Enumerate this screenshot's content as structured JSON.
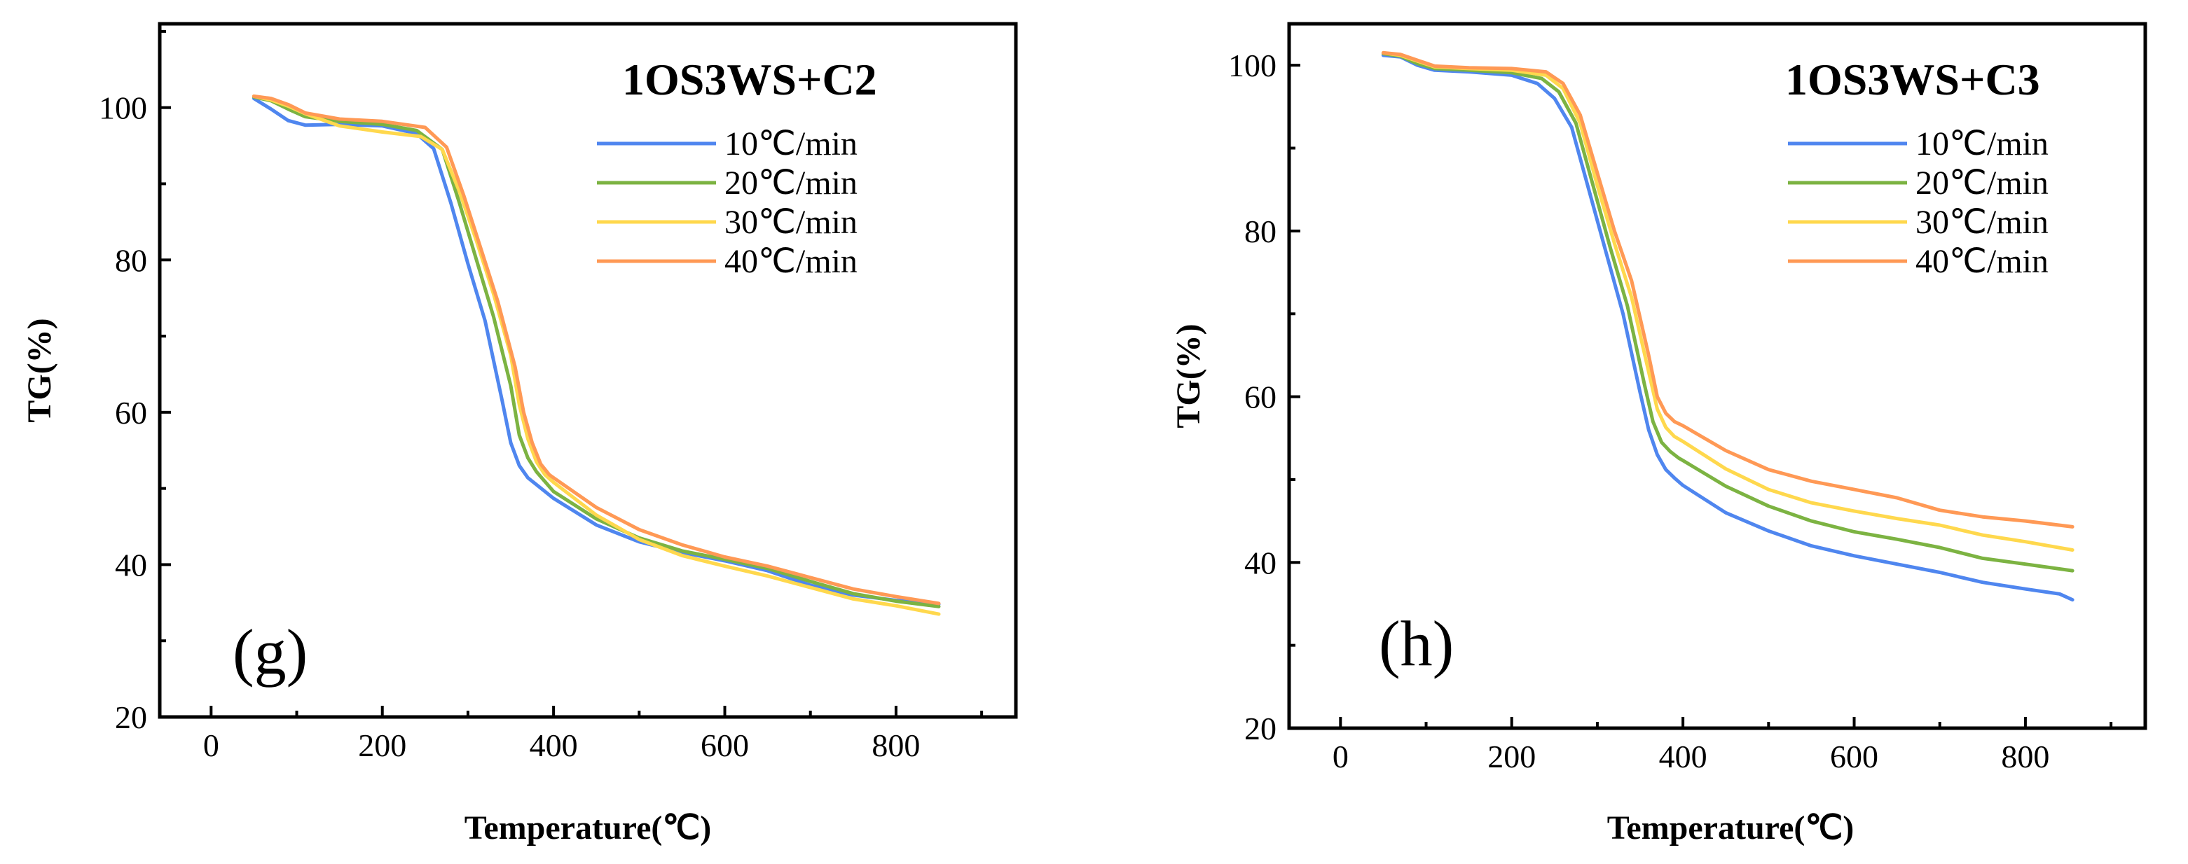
{
  "chart_data": [
    {
      "id": "g",
      "type": "line",
      "title": "1OS3WS+C2",
      "panel_label": "(g)",
      "xlabel": "Temperature(℃)",
      "ylabel": "TG(%)",
      "xlim": [
        -60,
        940
      ],
      "ylim": [
        20,
        111
      ],
      "xticks": [
        0,
        200,
        400,
        600,
        800
      ],
      "yticks": [
        20,
        40,
        60,
        80,
        100
      ],
      "legend_position": "top-right",
      "series": [
        {
          "name": "10℃/min",
          "color": "#4f86ef",
          "x": [
            50,
            70,
            90,
            110,
            150,
            200,
            240,
            260,
            280,
            300,
            320,
            340,
            350,
            360,
            370,
            380,
            400,
            450,
            500,
            550,
            600,
            650,
            700,
            750,
            800,
            850
          ],
          "y": [
            101.2,
            99.8,
            98.3,
            97.7,
            97.8,
            97.6,
            96.6,
            94.6,
            87.5,
            79.5,
            72,
            61.5,
            56,
            53,
            51.4,
            50.5,
            48.7,
            45.2,
            43,
            41.6,
            40.5,
            39.2,
            37.3,
            36,
            35.3,
            34.8
          ]
        },
        {
          "name": "20℃/min",
          "color": "#7cb342",
          "x": [
            50,
            70,
            90,
            110,
            150,
            200,
            240,
            270,
            290,
            310,
            330,
            350,
            360,
            370,
            380,
            400,
            450,
            500,
            550,
            600,
            650,
            700,
            750,
            800,
            850
          ],
          "y": [
            101.4,
            100.9,
            99.8,
            98.8,
            98.2,
            97.8,
            97,
            94.5,
            87.5,
            80,
            72.5,
            63.5,
            57,
            54,
            52.2,
            49.6,
            46,
            43.5,
            41.8,
            40.7,
            39.5,
            37.8,
            36.2,
            35.2,
            34.5
          ]
        },
        {
          "name": "30℃/min",
          "color": "#ffd84d",
          "x": [
            50,
            70,
            90,
            110,
            150,
            200,
            245,
            270,
            290,
            310,
            330,
            350,
            360,
            370,
            380,
            390,
            400,
            450,
            500,
            550,
            600,
            650,
            700,
            750,
            800,
            850
          ],
          "y": [
            101.5,
            101,
            100.2,
            99.2,
            97.6,
            96.8,
            96.2,
            94.5,
            89,
            82.5,
            75.5,
            67.5,
            61,
            56.5,
            53.5,
            51.8,
            50.8,
            46.5,
            43.3,
            41.2,
            39.8,
            38.5,
            37,
            35.5,
            34.6,
            33.5
          ]
        },
        {
          "name": "40℃/min",
          "color": "#ff9955",
          "x": [
            50,
            70,
            90,
            110,
            150,
            200,
            250,
            275,
            295,
            315,
            335,
            355,
            365,
            375,
            385,
            395,
            400,
            450,
            500,
            550,
            600,
            650,
            700,
            750,
            800,
            850
          ],
          "y": [
            101.5,
            101.2,
            100.4,
            99.3,
            98.5,
            98.2,
            97.4,
            94.8,
            88.5,
            81.5,
            74.5,
            66,
            60,
            56,
            53.2,
            51.8,
            51.4,
            47.5,
            44.6,
            42.6,
            41,
            39.8,
            38.3,
            36.8,
            35.8,
            34.9
          ]
        }
      ]
    },
    {
      "id": "h",
      "type": "line",
      "title": "1OS3WS+C3",
      "panel_label": "(h)",
      "xlabel": "Temperature(℃)",
      "ylabel": "TG(%)",
      "xlim": [
        -60,
        940
      ],
      "ylim": [
        20,
        105
      ],
      "xticks": [
        0,
        200,
        400,
        600,
        800
      ],
      "yticks": [
        20,
        40,
        60,
        80,
        100
      ],
      "legend_position": "top-right",
      "series": [
        {
          "name": "10℃/min",
          "color": "#4f86ef",
          "x": [
            50,
            70,
            90,
            110,
            150,
            200,
            230,
            250,
            270,
            290,
            310,
            330,
            350,
            360,
            370,
            380,
            390,
            400,
            450,
            500,
            550,
            600,
            650,
            700,
            750,
            800,
            840,
            855
          ],
          "y": [
            101.2,
            101,
            100,
            99.4,
            99.2,
            98.8,
            97.8,
            96,
            92.5,
            85,
            77.5,
            70,
            60.5,
            56,
            53,
            51.2,
            50.2,
            49.3,
            46,
            43.8,
            42,
            40.8,
            39.8,
            38.8,
            37.6,
            36.8,
            36.2,
            35.5
          ]
        },
        {
          "name": "20℃/min",
          "color": "#7cb342",
          "x": [
            50,
            70,
            90,
            110,
            150,
            200,
            235,
            255,
            275,
            295,
            315,
            335,
            355,
            365,
            375,
            385,
            395,
            400,
            450,
            500,
            550,
            600,
            650,
            700,
            750,
            800,
            855
          ],
          "y": [
            101.4,
            101.1,
            100.2,
            99.6,
            99.4,
            99.1,
            98.4,
            96.8,
            93,
            85.5,
            78,
            71,
            61.5,
            57,
            54.5,
            53.4,
            52.6,
            52.3,
            49.2,
            46.8,
            45,
            43.7,
            42.8,
            41.8,
            40.5,
            39.8,
            39
          ]
        },
        {
          "name": "30℃/min",
          "color": "#ffd84d",
          "x": [
            50,
            70,
            90,
            110,
            150,
            200,
            240,
            260,
            280,
            300,
            320,
            340,
            360,
            370,
            380,
            390,
            400,
            450,
            500,
            550,
            600,
            650,
            700,
            750,
            800,
            855
          ],
          "y": [
            101.5,
            101.2,
            100.5,
            99.8,
            99.6,
            99.4,
            98.8,
            97.2,
            93,
            85.5,
            78.5,
            72,
            63,
            58.5,
            56.3,
            55.2,
            54.6,
            51.3,
            48.8,
            47.2,
            46.2,
            45.3,
            44.5,
            43.3,
            42.5,
            41.5
          ]
        },
        {
          "name": "40℃/min",
          "color": "#ff9955",
          "x": [
            50,
            70,
            90,
            110,
            150,
            200,
            240,
            260,
            280,
            300,
            320,
            340,
            360,
            370,
            380,
            390,
            400,
            450,
            500,
            550,
            600,
            650,
            700,
            750,
            800,
            855
          ],
          "y": [
            101.5,
            101.3,
            100.6,
            99.9,
            99.7,
            99.6,
            99.2,
            97.8,
            94,
            87,
            80,
            74,
            65,
            60,
            58,
            57,
            56.5,
            53.5,
            51.2,
            49.8,
            48.8,
            47.8,
            46.3,
            45.5,
            45,
            44.3
          ]
        }
      ]
    }
  ]
}
